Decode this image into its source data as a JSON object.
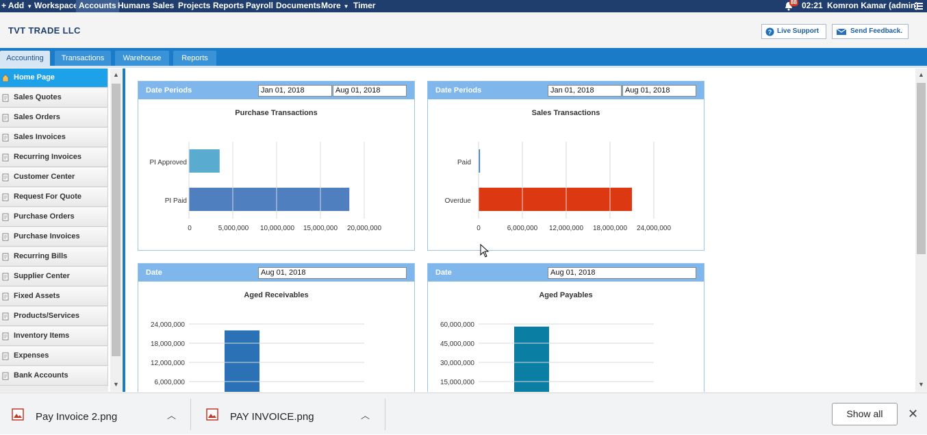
{
  "topnav": {
    "add": "Add",
    "items": [
      "Workspace",
      "Accounts",
      "Humans",
      "Sales",
      "Projects",
      "Reports",
      "Payroll",
      "Documents",
      "More",
      "Timer"
    ],
    "notification_count": "88",
    "time": "02:21",
    "user": "Komron Kamar (admin)"
  },
  "header": {
    "company": "TVT TRADE LLC",
    "live_support": "Live Support",
    "send_feedback": "Send Feedback."
  },
  "tabs": [
    "Accounting",
    "Transactions",
    "Warehouse",
    "Reports"
  ],
  "sidebar": {
    "items": [
      "Home Page",
      "Sales Quotes",
      "Sales Orders",
      "Sales Invoices",
      "Recurring Invoices",
      "Customer Center",
      "Request For Quote",
      "Purchase Orders",
      "Purchase Invoices",
      "Recurring Bills",
      "Supplier Center",
      "Fixed Assets",
      "Products/Services",
      "Inventory Items",
      "Expenses",
      "Bank Accounts"
    ]
  },
  "panels": {
    "purchase": {
      "head_label": "Date Periods",
      "date_from": "Jan 01, 2018",
      "date_to": "Aug 01, 2018",
      "title": "Purchase Transactions",
      "categories": [
        "PI Approved",
        "PI Paid"
      ],
      "ticks": [
        "0",
        "5,000,000",
        "10,000,000",
        "15,000,000",
        "20,000,000"
      ]
    },
    "sales": {
      "head_label": "Date Periods",
      "date_from": "Jan 01, 2018",
      "date_to": "Aug 01, 2018",
      "title": "Sales Transactions",
      "categories": [
        "Paid",
        "Overdue"
      ],
      "ticks": [
        "0",
        "6,000,000",
        "12,000,000",
        "18,000,000",
        "24,000,000"
      ]
    },
    "receivables": {
      "head_label": "Date",
      "date": "Aug 01, 2018",
      "title": "Aged Receivables",
      "ticks": [
        "24,000,000",
        "18,000,000",
        "12,000,000",
        "6,000,000"
      ]
    },
    "payables": {
      "head_label": "Date",
      "date": "Aug 01, 2018",
      "title": "Aged Payables",
      "ticks": [
        "60,000,000",
        "45,000,000",
        "30,000,000",
        "15,000,000"
      ]
    }
  },
  "chart_data": [
    {
      "type": "bar",
      "orientation": "horizontal",
      "title": "Purchase Transactions",
      "categories": [
        "PI Approved",
        "PI Paid"
      ],
      "values": [
        3500000,
        18300000
      ],
      "colors": [
        "#5aabd0",
        "#4f7fbf"
      ],
      "xlim": [
        0,
        20000000
      ]
    },
    {
      "type": "bar",
      "orientation": "horizontal",
      "title": "Sales Transactions",
      "categories": [
        "Paid",
        "Overdue"
      ],
      "values": [
        200000,
        21000000
      ],
      "colors": [
        "#3a75c4",
        "#dc3912"
      ],
      "xlim": [
        0,
        24000000
      ]
    },
    {
      "type": "bar",
      "title": "Aged Receivables",
      "values": [
        22000000
      ],
      "colors": [
        "#2a72b5"
      ],
      "ylim": [
        0,
        24000000
      ]
    },
    {
      "type": "bar",
      "title": "Aged Payables",
      "values": [
        58000000
      ],
      "colors": [
        "#0b7fa3"
      ],
      "ylim": [
        0,
        60000000
      ]
    }
  ],
  "downloads": {
    "files": [
      "Pay Invoice 2.png",
      "PAY INVOICE.png"
    ],
    "show_all": "Show all"
  }
}
